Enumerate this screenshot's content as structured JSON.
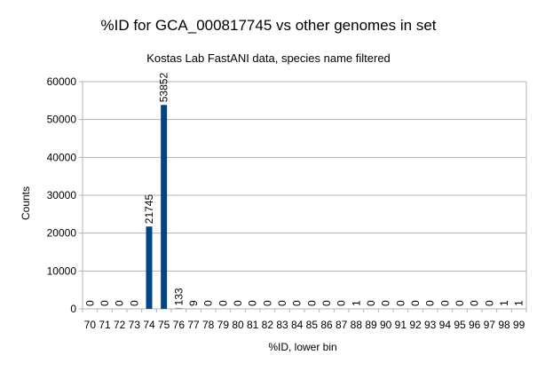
{
  "chart_data": {
    "type": "bar",
    "title": "%ID for GCA_000817745 vs other genomes in set",
    "subtitle": "Kostas Lab FastANI data, species name filtered",
    "xlabel": "%ID, lower bin",
    "ylabel": "Counts",
    "ylim": [
      0,
      60000
    ],
    "yticks": [
      "0",
      "10000",
      "20000",
      "30000",
      "40000",
      "50000",
      "60000"
    ],
    "categories": [
      "70",
      "71",
      "72",
      "73",
      "74",
      "75",
      "76",
      "77",
      "78",
      "79",
      "80",
      "81",
      "82",
      "83",
      "84",
      "85",
      "86",
      "87",
      "88",
      "89",
      "90",
      "91",
      "92",
      "93",
      "94",
      "95",
      "96",
      "97",
      "98",
      "99"
    ],
    "values": [
      0,
      0,
      0,
      0,
      21745,
      53852,
      133,
      9,
      0,
      0,
      0,
      0,
      0,
      0,
      0,
      0,
      0,
      0,
      1,
      0,
      0,
      0,
      0,
      0,
      0,
      0,
      0,
      0,
      1,
      1
    ],
    "data_labels": [
      "0",
      "0",
      "0",
      "0",
      "21745",
      "53852",
      "133",
      "9",
      "0",
      "0",
      "0",
      "0",
      "0",
      "0",
      "0",
      "0",
      "0",
      "0",
      "1",
      "0",
      "0",
      "0",
      "0",
      "0",
      "0",
      "0",
      "0",
      "0",
      "1",
      "1"
    ],
    "bar_color": "#004586",
    "grid": true,
    "legend": "none"
  }
}
